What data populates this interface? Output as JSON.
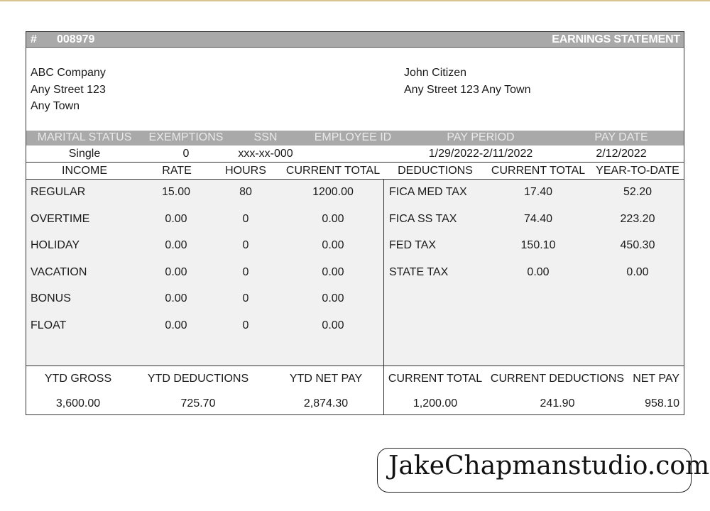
{
  "header": {
    "hash": "#",
    "number": "008979",
    "title": "EARNINGS STATEMENT"
  },
  "employer": {
    "name": "ABC Company",
    "street": "Any Street 123",
    "town": "Any Town"
  },
  "employee": {
    "name": "John Citizen",
    "address": "Any Street 123 Any Town"
  },
  "info_headers": [
    "MARITAL STATUS",
    "EXEMPTIONS",
    "SSN",
    "EMPLOYEE ID",
    "PAY PERIOD",
    "PAY DATE"
  ],
  "info_values": {
    "marital_status": "Single",
    "exemptions": "0",
    "ssn": "xxx-xx-000",
    "employee_id": "",
    "pay_period": "1/29/2022-2/11/2022",
    "pay_date": "2/12/2022"
  },
  "column_headers": [
    "INCOME",
    "RATE",
    "HOURS",
    "CURRENT TOTAL",
    "DEDUCTIONS",
    "CURRENT TOTAL",
    "YEAR-TO-DATE"
  ],
  "income_rows": [
    {
      "label": "REGULAR",
      "rate": "15.00",
      "hours": "80",
      "current_total": "1200.00"
    },
    {
      "label": "OVERTIME",
      "rate": "0.00",
      "hours": "0",
      "current_total": "0.00"
    },
    {
      "label": "HOLIDAY",
      "rate": "0.00",
      "hours": "0",
      "current_total": "0.00"
    },
    {
      "label": "VACATION",
      "rate": "0.00",
      "hours": "0",
      "current_total": "0.00"
    },
    {
      "label": "BONUS",
      "rate": "0.00",
      "hours": "0",
      "current_total": "0.00"
    },
    {
      "label": "FLOAT",
      "rate": "0.00",
      "hours": "0",
      "current_total": "0.00"
    }
  ],
  "deduction_rows": [
    {
      "label": "FICA MED TAX",
      "current_total": "17.40",
      "ytd": "52.20"
    },
    {
      "label": "FICA SS TAX",
      "current_total": "74.40",
      "ytd": "223.20"
    },
    {
      "label": "FED TAX",
      "current_total": "150.10",
      "ytd": "450.30"
    },
    {
      "label": "STATE TAX",
      "current_total": "0.00",
      "ytd": "0.00"
    }
  ],
  "summary": {
    "ytd_gross_label": "YTD GROSS",
    "ytd_gross": "3,600.00",
    "ytd_deductions_label": "YTD DEDUCTIONS",
    "ytd_deductions": "725.70",
    "ytd_net_pay_label": "YTD NET PAY",
    "ytd_net_pay": "2,874.30",
    "current_total_label": "CURRENT TOTAL",
    "current_total": "1,200.00",
    "current_deductions_label": "CURRENT DEDUCTIONS",
    "current_deductions": "241.90",
    "net_pay_label": "NET PAY",
    "net_pay": "958.10"
  },
  "watermark": "JakeChapmanstudio.com"
}
